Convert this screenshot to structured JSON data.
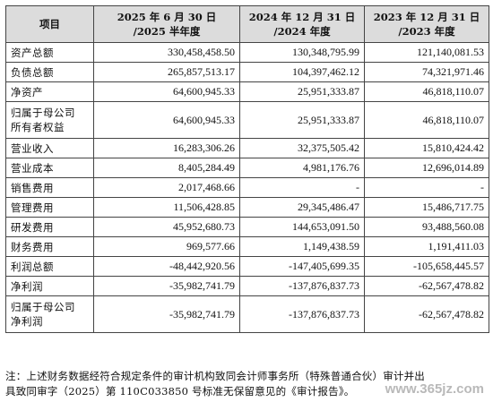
{
  "table": {
    "headers": [
      {
        "line1": "项目",
        "line2": ""
      },
      {
        "line1": "2025 年 6 月 30 日",
        "line2": "/2025 半年度"
      },
      {
        "line1": "2024 年 12 月 31 日",
        "line2": "/2024 年度"
      },
      {
        "line1": "2023 年 12 月 31 日",
        "line2": "/2023 年度"
      }
    ],
    "rows": [
      {
        "label": "资产总额",
        "label2": "",
        "v2025": "330,458,458.50",
        "v2024": "130,348,795.99",
        "v2023": "121,140,081.53"
      },
      {
        "label": "负债总额",
        "label2": "",
        "v2025": "265,857,513.17",
        "v2024": "104,397,462.12",
        "v2023": "74,321,971.46"
      },
      {
        "label": "净资产",
        "label2": "",
        "v2025": "64,600,945.33",
        "v2024": "25,951,333.87",
        "v2023": "46,818,110.07"
      },
      {
        "label": "归属于母公司",
        "label2": "所有者权益",
        "v2025": "64,600,945.33",
        "v2024": "25,951,333.87",
        "v2023": "46,818,110.07"
      },
      {
        "label": "营业收入",
        "label2": "",
        "v2025": "16,283,306.26",
        "v2024": "32,375,505.42",
        "v2023": "15,810,424.42"
      },
      {
        "label": "营业成本",
        "label2": "",
        "v2025": "8,405,284.49",
        "v2024": "4,981,176.76",
        "v2023": "12,696,014.89"
      },
      {
        "label": "销售费用",
        "label2": "",
        "v2025": "2,017,468.66",
        "v2024": "-",
        "v2023": "-"
      },
      {
        "label": "管理费用",
        "label2": "",
        "v2025": "11,506,428.85",
        "v2024": "29,345,486.47",
        "v2023": "15,486,717.75"
      },
      {
        "label": "研发费用",
        "label2": "",
        "v2025": "45,952,680.73",
        "v2024": "144,653,091.50",
        "v2023": "93,488,560.08"
      },
      {
        "label": "财务费用",
        "label2": "",
        "v2025": "969,577.66",
        "v2024": "1,149,438.59",
        "v2023": "1,191,411.03"
      },
      {
        "label": "利润总额",
        "label2": "",
        "v2025": "-48,442,920.56",
        "v2024": "-147,405,699.35",
        "v2023": "-105,658,445.57"
      },
      {
        "label": "净利润",
        "label2": "",
        "v2025": "-35,982,741.79",
        "v2024": "-137,876,837.73",
        "v2023": "-62,567,478.82"
      },
      {
        "label": "归属于母公司",
        "label2": "净利润",
        "v2025": "-35,982,741.79",
        "v2024": "-137,876,837.73",
        "v2023": "-62,567,478.82"
      }
    ]
  },
  "note": {
    "line1": "注：上述财务数据经符合规定条件的审计机构致同会计师事务所（特殊普通合伙）审计并出",
    "line2": "具致同审字（2025）第 110C033850 号标准无保留意见的《审计报告》。"
  },
  "watermark": "www.365jz.com"
}
